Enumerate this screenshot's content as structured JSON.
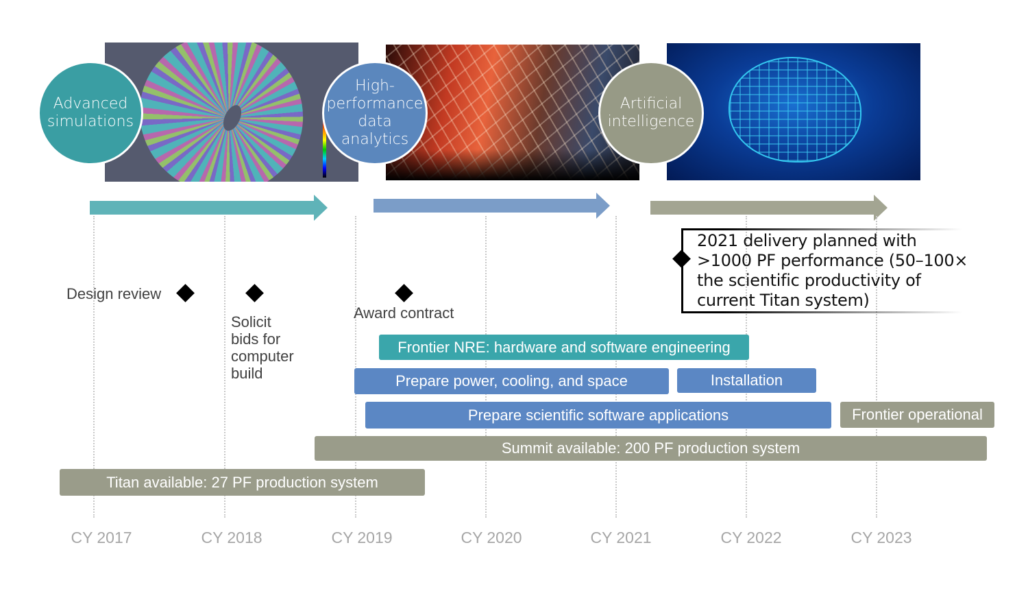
{
  "themes": [
    {
      "label": "Advanced simulations",
      "lines": [
        "Advanced",
        "simulations"
      ],
      "color": "#3a9ea3",
      "arrow_color": "#5fb3b8"
    },
    {
      "label": "High-performance data analytics",
      "lines": [
        "High-",
        "performance",
        "data",
        "analytics"
      ],
      "color": "#5b87bd",
      "arrow_color": "#7b9dc8"
    },
    {
      "label": "Artificial intelligence",
      "lines": [
        "Artificial",
        "intelligence"
      ],
      "color": "#979a86",
      "arrow_color": "#a3a592"
    }
  ],
  "years": [
    "CY 2017",
    "CY 2018",
    "CY 2019",
    "CY 2020",
    "CY 2021",
    "CY 2022",
    "CY 2023"
  ],
  "milestones": {
    "design_review": "Design review",
    "solicit": [
      "Solicit",
      "bids for",
      "computer",
      "build"
    ],
    "award": "Award contract",
    "delivery": [
      "2021 delivery planned with",
      ">1000 PF performance (50–100×",
      "the scientific productivity of",
      "current Titan system)"
    ]
  },
  "bars": [
    {
      "label": "Frontier NRE: hardware and  software engineering",
      "color": "#3aa6ab"
    },
    {
      "label": "Prepare power, cooling, and space",
      "color": "#5b87c4"
    },
    {
      "label": "Installation",
      "color": "#5b87c4"
    },
    {
      "label": "Prepare scientific software applications",
      "color": "#5b87c4"
    },
    {
      "label": "Frontier operational",
      "color": "#9a9c8a"
    },
    {
      "label": "Summit available: 200 PF production system",
      "color": "#9a9c8a"
    },
    {
      "label": "Titan available: 27 PF production system",
      "color": "#9a9c8a"
    }
  ]
}
